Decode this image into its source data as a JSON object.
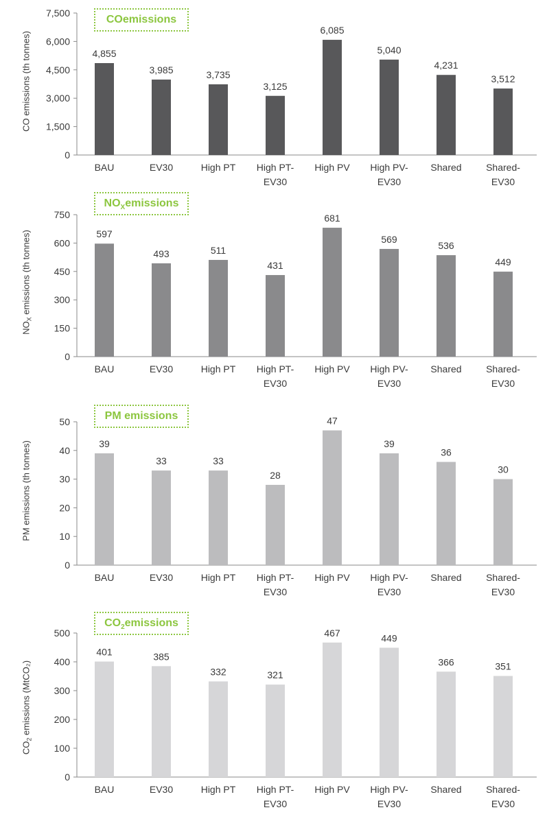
{
  "chart_data": [
    {
      "type": "bar",
      "title": {
        "pre": "CO",
        "sub": "",
        "post": " emissions"
      },
      "ylabel": {
        "pre": "CO emissions (th tonnes)",
        "sub": "",
        "post": ""
      },
      "categories": [
        [
          "BAU"
        ],
        [
          "EV30"
        ],
        [
          "High PT"
        ],
        [
          "High PT-",
          "EV30"
        ],
        [
          "High PV"
        ],
        [
          "High PV-",
          "EV30"
        ],
        [
          "Shared"
        ],
        [
          "Shared-",
          "EV30"
        ]
      ],
      "values": [
        4855,
        3985,
        3735,
        3125,
        6085,
        5040,
        4231,
        3512
      ],
      "value_labels": [
        "4,855",
        "3,985",
        "3,735",
        "3,125",
        "6,085",
        "5,040",
        "4,231",
        "3,512"
      ],
      "yticks": [
        0,
        1500,
        3000,
        4500,
        6000,
        7500
      ],
      "ytick_labels": [
        "0",
        "1,500",
        "3,000",
        "4,500",
        "6,000",
        "7,500"
      ],
      "ylim": [
        0,
        7500
      ],
      "bar_color": "#58585a",
      "grid": false
    },
    {
      "type": "bar",
      "title": {
        "pre": "NO",
        "sub": "X",
        "post": " emissions"
      },
      "ylabel": {
        "pre": "NO",
        "sub": "X",
        "post": " emissions (th tonnes)"
      },
      "categories": [
        [
          "BAU"
        ],
        [
          "EV30"
        ],
        [
          "High PT"
        ],
        [
          "High PT-",
          "EV30"
        ],
        [
          "High PV"
        ],
        [
          "High PV-",
          "EV30"
        ],
        [
          "Shared"
        ],
        [
          "Shared-",
          "EV30"
        ]
      ],
      "values": [
        597,
        493,
        511,
        431,
        681,
        569,
        536,
        449
      ],
      "value_labels": [
        "597",
        "493",
        "511",
        "431",
        "681",
        "569",
        "536",
        "449"
      ],
      "yticks": [
        0,
        150,
        300,
        450,
        600,
        750
      ],
      "ytick_labels": [
        "0",
        "150",
        "300",
        "450",
        "600",
        "750"
      ],
      "ylim": [
        0,
        750
      ],
      "bar_color": "#8a8a8c",
      "grid": false
    },
    {
      "type": "bar",
      "title": {
        "pre": "PM emissions",
        "sub": "",
        "post": ""
      },
      "ylabel": {
        "pre": "PM emissions (th tonnes)",
        "sub": "",
        "post": ""
      },
      "categories": [
        [
          "BAU"
        ],
        [
          "EV30"
        ],
        [
          "High PT"
        ],
        [
          "High PT-",
          "EV30"
        ],
        [
          "High PV"
        ],
        [
          "High PV-",
          "EV30"
        ],
        [
          "Shared"
        ],
        [
          "Shared-",
          "EV30"
        ]
      ],
      "values": [
        39,
        33,
        33,
        28,
        47,
        39,
        36,
        30
      ],
      "value_labels": [
        "39",
        "33",
        "33",
        "28",
        "47",
        "39",
        "36",
        "30"
      ],
      "yticks": [
        0,
        10,
        20,
        30,
        40,
        50
      ],
      "ytick_labels": [
        "0",
        "10",
        "20",
        "30",
        "40",
        "50"
      ],
      "ylim": [
        0,
        50
      ],
      "bar_color": "#bcbcbe",
      "grid": false
    },
    {
      "type": "bar",
      "title": {
        "pre": "CO",
        "sub": "2",
        "post": " emissions"
      },
      "ylabel": {
        "pre": "CO",
        "sub": "2",
        "post": " emissions (MtCO₂)"
      },
      "categories": [
        [
          "BAU"
        ],
        [
          "EV30"
        ],
        [
          "High PT"
        ],
        [
          "High PT-",
          "EV30"
        ],
        [
          "High PV"
        ],
        [
          "High PV-",
          "EV30"
        ],
        [
          "Shared"
        ],
        [
          "Shared-",
          "EV30"
        ]
      ],
      "values": [
        401,
        385,
        332,
        321,
        467,
        449,
        366,
        351
      ],
      "value_labels": [
        "401",
        "385",
        "332",
        "321",
        "467",
        "449",
        "366",
        "351"
      ],
      "yticks": [
        0,
        100,
        200,
        300,
        400,
        500
      ],
      "ytick_labels": [
        "0",
        "100",
        "200",
        "300",
        "400",
        "500"
      ],
      "ylim": [
        0,
        500
      ],
      "bar_color": "#d6d6d8",
      "grid": false
    }
  ],
  "colors": {
    "title_accent": "#8cc63f",
    "axis": "#8a8a8a",
    "text": "#3a3a3a"
  }
}
